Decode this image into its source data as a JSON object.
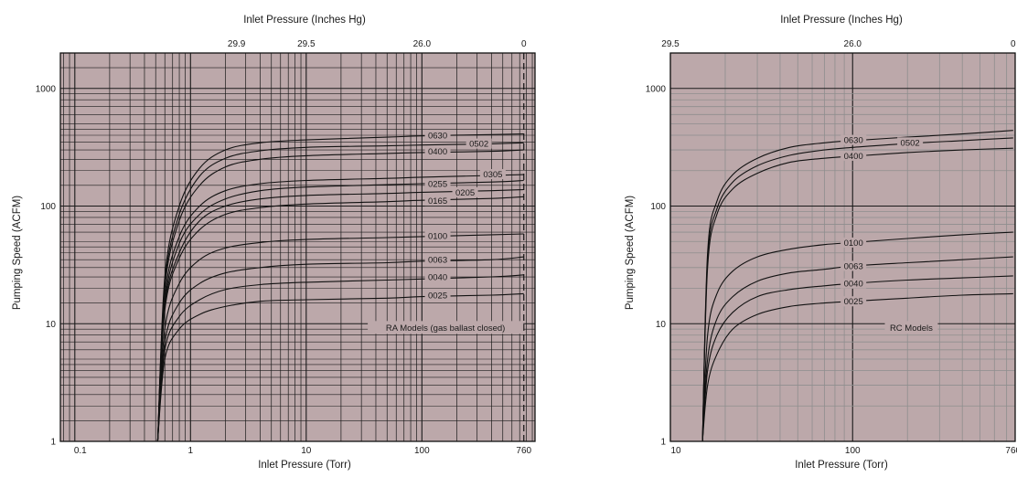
{
  "colors": {
    "plot_background": "#bca8aa",
    "major_grid": "#1a1a1a",
    "minor_grid_left": "#1a1a1a",
    "minor_grid_right": "#8e8e8e",
    "curve": "#111111",
    "label_box": "#bca8aa"
  },
  "chart_data": [
    {
      "type": "line",
      "title": "",
      "top_axis_title": "Inlet Pressure (Inches Hg)",
      "top_ticks": [
        {
          "label": "29.9",
          "torr": 2.5
        },
        {
          "label": "29.5",
          "torr": 10
        },
        {
          "label": "26.0",
          "torr": 100
        },
        {
          "label": "0",
          "torr": 760
        }
      ],
      "xlabel": "Inlet Pressure (Torr)",
      "ylabel": "Pumping Speed (ACFM)",
      "x_scale": "log",
      "y_scale": "log",
      "xlim": [
        0.075,
        950
      ],
      "ylim": [
        1,
        2000
      ],
      "x_ticks": [
        {
          "label": "0.1",
          "value": 0.1
        },
        {
          "label": "1",
          "value": 1
        },
        {
          "label": "10",
          "value": 10
        },
        {
          "label": "100",
          "value": 100
        },
        {
          "label": "760",
          "value": 760
        }
      ],
      "y_ticks": [
        {
          "label": "1",
          "value": 1
        },
        {
          "label": "10",
          "value": 10
        },
        {
          "label": "100",
          "value": 100
        },
        {
          "label": "1000",
          "value": 1000
        }
      ],
      "grid": "dense",
      "dashed_line_x": 760,
      "annotation": "RA Models  (gas ballast closed)",
      "annotation_pos": {
        "x": 160,
        "y": 9.3
      },
      "series": [
        {
          "name": "0630",
          "x": [
            0.52,
            0.6,
            0.8,
            1.2,
            2,
            4,
            10,
            50,
            100,
            400,
            760
          ],
          "y": [
            1,
            25,
            100,
            210,
            300,
            345,
            365,
            385,
            395,
            405,
            410
          ]
        },
        {
          "name": "0502",
          "x": [
            0.52,
            0.6,
            0.8,
            1.2,
            2,
            4,
            10,
            50,
            100,
            400,
            760
          ],
          "y": [
            1,
            22,
            85,
            180,
            255,
            295,
            315,
            325,
            330,
            338,
            345
          ]
        },
        {
          "name": "0400",
          "x": [
            0.52,
            0.6,
            0.8,
            1.2,
            2,
            4,
            10,
            50,
            100,
            400,
            760
          ],
          "y": [
            1,
            20,
            75,
            150,
            215,
            250,
            268,
            280,
            285,
            292,
            300
          ]
        },
        {
          "name": "0305",
          "x": [
            0.52,
            0.6,
            0.8,
            1.2,
            2,
            4,
            10,
            50,
            100,
            400,
            760
          ],
          "y": [
            1,
            17,
            55,
            100,
            135,
            155,
            165,
            172,
            176,
            182,
            185
          ]
        },
        {
          "name": "0255",
          "x": [
            0.52,
            0.6,
            0.8,
            1.2,
            2,
            4,
            10,
            50,
            100,
            400,
            760
          ],
          "y": [
            1,
            15,
            48,
            85,
            115,
            135,
            145,
            152,
            155,
            160,
            165
          ]
        },
        {
          "name": "0205",
          "x": [
            0.52,
            0.6,
            0.8,
            1.2,
            2,
            4,
            10,
            50,
            100,
            400,
            760
          ],
          "y": [
            1,
            14,
            40,
            75,
            100,
            115,
            123,
            128,
            131,
            135,
            138
          ]
        },
        {
          "name": "0165",
          "x": [
            0.52,
            0.6,
            0.8,
            1.2,
            2,
            4,
            10,
            50,
            100,
            400,
            760
          ],
          "y": [
            1,
            13,
            36,
            63,
            85,
            97,
            104,
            109,
            112,
            116,
            120
          ]
        },
        {
          "name": "0100",
          "x": [
            0.52,
            0.6,
            0.8,
            1.2,
            2,
            4,
            10,
            50,
            100,
            400,
            760
          ],
          "y": [
            1,
            9,
            22,
            35,
            44,
            49,
            52,
            54,
            55,
            57,
            58
          ]
        },
        {
          "name": "0063",
          "x": [
            0.52,
            0.6,
            0.8,
            1.2,
            2,
            4,
            10,
            50,
            100,
            400,
            760
          ],
          "y": [
            1,
            7,
            15,
            22,
            27,
            30,
            32,
            33,
            34,
            35,
            37
          ]
        },
        {
          "name": "0040",
          "x": [
            0.52,
            0.6,
            0.8,
            1.2,
            2,
            4,
            10,
            50,
            100,
            400,
            760
          ],
          "y": [
            1,
            6,
            11.5,
            16,
            19.5,
            21.5,
            22.5,
            23.5,
            24,
            25,
            26
          ]
        },
        {
          "name": "0025",
          "x": [
            0.52,
            0.6,
            0.8,
            1.2,
            2,
            4,
            10,
            50,
            100,
            400,
            760
          ],
          "y": [
            1,
            5,
            9,
            12,
            14,
            15.5,
            16,
            16.5,
            17,
            17.5,
            18
          ]
        }
      ],
      "curve_labels": [
        {
          "text": "0630",
          "x": 110,
          "y": 400
        },
        {
          "text": "0502",
          "x": 250,
          "y": 340
        },
        {
          "text": "0400",
          "x": 110,
          "y": 292
        },
        {
          "text": "0305",
          "x": 330,
          "y": 187
        },
        {
          "text": "0255",
          "x": 110,
          "y": 155
        },
        {
          "text": "0205",
          "x": 190,
          "y": 131
        },
        {
          "text": "0165",
          "x": 110,
          "y": 111
        },
        {
          "text": "0100",
          "x": 110,
          "y": 56
        },
        {
          "text": "0063",
          "x": 110,
          "y": 35
        },
        {
          "text": "0040",
          "x": 110,
          "y": 25
        },
        {
          "text": "0025",
          "x": 110,
          "y": 17.5
        }
      ]
    },
    {
      "type": "line",
      "title": "",
      "top_axis_title": "Inlet Pressure (Inches Hg)",
      "top_ticks": [
        {
          "label": "29.5",
          "torr": 10
        },
        {
          "label": "26.0",
          "torr": 100
        },
        {
          "label": "0",
          "torr": 760
        }
      ],
      "xlabel": "Inlet Pressure (Torr)",
      "ylabel": "Pumping Speed (ACFM)",
      "x_scale": "log",
      "y_scale": "log",
      "xlim": [
        10,
        780
      ],
      "ylim": [
        1,
        2000
      ],
      "x_ticks": [
        {
          "label": "10",
          "value": 10
        },
        {
          "label": "100",
          "value": 100
        },
        {
          "label": "760",
          "value": 760
        }
      ],
      "y_ticks": [
        {
          "label": "1",
          "value": 1
        },
        {
          "label": "10",
          "value": 10
        },
        {
          "label": "100",
          "value": 100
        },
        {
          "label": "1000",
          "value": 1000
        }
      ],
      "grid": "sparse",
      "annotation": "RC Models",
      "annotation_pos": {
        "x": 210,
        "y": 9.3
      },
      "series": [
        {
          "name": "0630",
          "x": [
            15,
            16,
            18,
            22,
            30,
            45,
            70,
            100,
            200,
            400,
            760
          ],
          "y": [
            1,
            40,
            110,
            185,
            255,
            315,
            345,
            360,
            385,
            410,
            440
          ]
        },
        {
          "name": "0502",
          "x": [
            15,
            16,
            18,
            22,
            30,
            45,
            70,
            100,
            200,
            400,
            760
          ],
          "y": [
            1,
            35,
            95,
            160,
            220,
            270,
            300,
            315,
            340,
            360,
            380
          ]
        },
        {
          "name": "0400",
          "x": [
            15,
            16,
            18,
            22,
            30,
            45,
            70,
            100,
            200,
            400,
            760
          ],
          "y": [
            1,
            30,
            85,
            140,
            190,
            235,
            255,
            265,
            285,
            300,
            310
          ]
        },
        {
          "name": "0100",
          "x": [
            15,
            16,
            18,
            22,
            30,
            45,
            70,
            100,
            200,
            400,
            760
          ],
          "y": [
            1,
            8,
            18,
            28,
            37,
            43,
            47,
            49,
            53,
            57,
            60
          ]
        },
        {
          "name": "0063",
          "x": [
            15,
            16,
            18,
            22,
            30,
            45,
            70,
            100,
            200,
            400,
            760
          ],
          "y": [
            1,
            5,
            11,
            17,
            23,
            27,
            29,
            31,
            33,
            35,
            37
          ]
        },
        {
          "name": "0040",
          "x": [
            15,
            16,
            18,
            22,
            30,
            45,
            70,
            100,
            200,
            400,
            760
          ],
          "y": [
            1,
            4,
            8,
            12.5,
            17,
            19.5,
            21,
            22,
            23.5,
            24.5,
            25.5
          ]
        },
        {
          "name": "0025",
          "x": [
            15,
            16,
            18,
            22,
            30,
            45,
            70,
            100,
            200,
            400,
            760
          ],
          "y": [
            1,
            3,
            5.5,
            9,
            12,
            14,
            15,
            15.5,
            16.5,
            17.5,
            18
          ]
        }
      ],
      "curve_labels": [
        {
          "text": "0630",
          "x": 88,
          "y": 365
        },
        {
          "text": "0502",
          "x": 180,
          "y": 348
        },
        {
          "text": "0400",
          "x": 88,
          "y": 268
        },
        {
          "text": "0100",
          "x": 88,
          "y": 49
        },
        {
          "text": "0063",
          "x": 88,
          "y": 31
        },
        {
          "text": "0040",
          "x": 88,
          "y": 22
        },
        {
          "text": "0025",
          "x": 88,
          "y": 15.5
        }
      ]
    }
  ]
}
